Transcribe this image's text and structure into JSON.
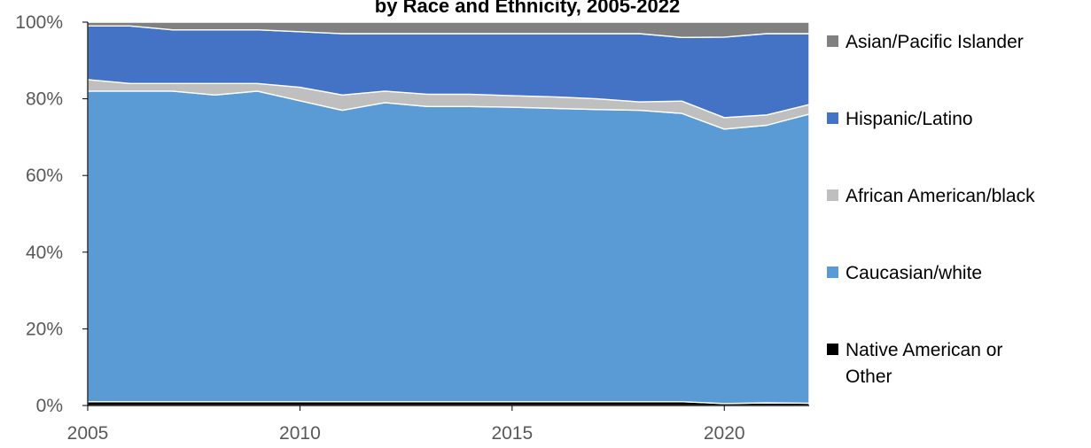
{
  "chart_data": {
    "type": "area",
    "stacked": true,
    "percent": true,
    "title": "by Race and Ethnicity, 2005-2022",
    "xlabel": "",
    "ylabel": "",
    "x": [
      2005,
      2006,
      2007,
      2008,
      2009,
      2010,
      2011,
      2012,
      2013,
      2014,
      2015,
      2016,
      2017,
      2018,
      2019,
      2020,
      2021,
      2022
    ],
    "xlim": [
      2005,
      2022
    ],
    "ylim": [
      0,
      100
    ],
    "x_ticks": [
      "2005",
      "2010",
      "2015",
      "2020"
    ],
    "y_ticks": [
      "0%",
      "20%",
      "40%",
      "60%",
      "80%",
      "100%"
    ],
    "grid": false,
    "legend_position": "right",
    "series": [
      {
        "name": "Native American or Other",
        "color": "#000000",
        "values": [
          1,
          1,
          1,
          1,
          1,
          1,
          1,
          1,
          1,
          1,
          1,
          1,
          1,
          1,
          1,
          0.5,
          0.7,
          0.6
        ]
      },
      {
        "name": "Caucasian/white",
        "color": "#5B9BD5",
        "values": [
          81,
          81,
          81,
          80,
          81,
          78.5,
          76,
          78,
          77,
          77,
          76.8,
          76.5,
          76.2,
          76,
          75.2,
          71.6,
          72.4,
          75.4
        ]
      },
      {
        "name": "African American/black",
        "color": "#BFBFBF",
        "values": [
          3,
          2,
          2,
          3,
          2,
          3.5,
          4,
          3,
          3.2,
          3.2,
          3,
          3,
          2.8,
          2.2,
          3.2,
          3,
          2.7,
          2.5
        ]
      },
      {
        "name": "Hispanic/Latino",
        "color": "#4472C4",
        "values": [
          14,
          15,
          14,
          14,
          14,
          14.5,
          16,
          15,
          15.8,
          15.8,
          16.2,
          16.5,
          17,
          17.8,
          16.6,
          21,
          21.2,
          18.5
        ]
      },
      {
        "name": "Asian/Pacific Islander",
        "color": "#808080",
        "values": [
          1,
          1,
          2,
          2,
          2,
          2.5,
          3,
          3,
          3,
          3,
          3,
          3,
          3,
          3,
          4,
          3.9,
          3,
          3
        ]
      }
    ]
  }
}
